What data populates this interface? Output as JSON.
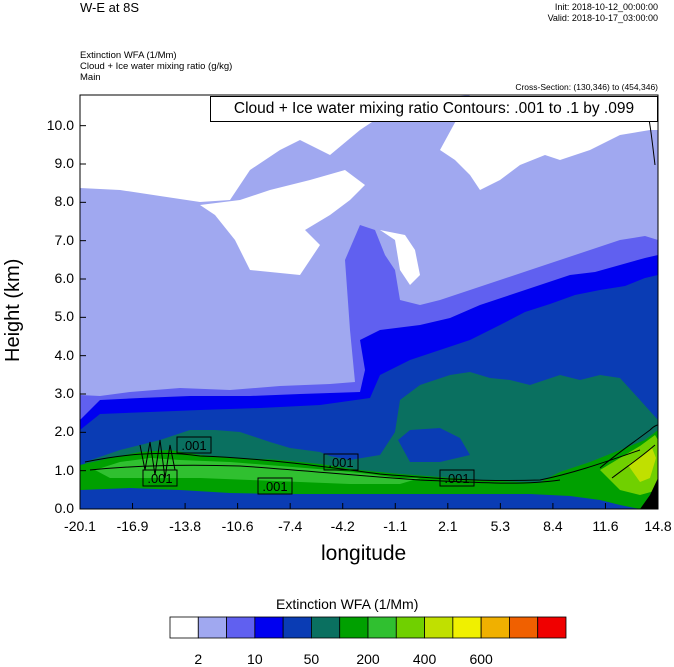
{
  "header": {
    "title": "W-E at 8S",
    "init": "Init: 2018-10-12_00:00:00",
    "valid": "Valid: 2018-10-17_03:00:00",
    "field1": "Extinction WFA   (1/Mm)",
    "field2": "Cloud + Ice water mixing ratio   (g/kg)",
    "field3": "Main",
    "cross_section": "Cross-Section: (130,346) to (454,346)"
  },
  "chart_data": {
    "type": "heatmap",
    "xlabel": "longitude",
    "ylabel": "Height (km)",
    "x_tick_labels": [
      "-20.1",
      "-16.9",
      "-13.8",
      "-10.6",
      "-7.4",
      "-4.2",
      "-1.1",
      "2.1",
      "5.3",
      "8.4",
      "11.6",
      "14.8"
    ],
    "y_ticks": [
      0.0,
      1.0,
      2.0,
      3.0,
      4.0,
      5.0,
      6.0,
      7.0,
      8.0,
      9.0,
      10.0
    ],
    "y_tick_labels": [
      "0.0",
      "1.0",
      "2.0",
      "3.0",
      "4.0",
      "5.0",
      "6.0",
      "7.0",
      "8.0",
      "9.0",
      "10.0"
    ],
    "ylim": [
      0,
      10.8
    ],
    "contour_info": "Cloud + Ice water mixing ratio Contours: .001 to .1 by .099",
    "contour_labels": [
      ".001",
      ".001",
      ".001",
      ".001",
      ".001"
    ],
    "colorbar": {
      "title": "Extinction WFA  (1/Mm)",
      "labels": [
        "2",
        "10",
        "50",
        "200",
        "400",
        "600"
      ],
      "colors": [
        "#ffffff",
        "#a0a8f0",
        "#6060f0",
        "#0000f0",
        "#0a3cb4",
        "#0a7060",
        "#00a000",
        "#30c030",
        "#70d000",
        "#c0e000",
        "#f0f000",
        "#f0b000",
        "#f06000",
        "#f00000"
      ]
    }
  }
}
